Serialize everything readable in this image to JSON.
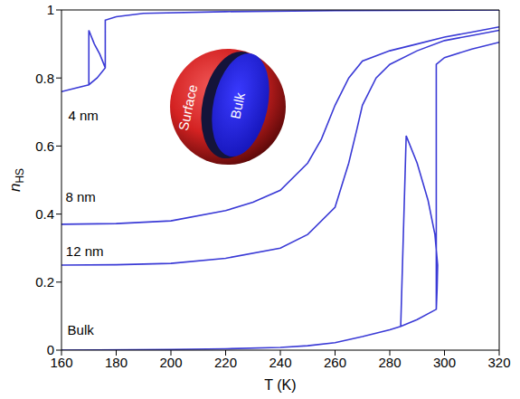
{
  "chart_data": {
    "type": "line",
    "xlabel": "T (K)",
    "ylabel": "nHS",
    "xlim": [
      160,
      320
    ],
    "xticks": [
      160,
      180,
      200,
      220,
      240,
      260,
      280,
      300,
      320
    ],
    "ylim": [
      0,
      1
    ],
    "yticks": [
      0,
      0.2,
      0.4,
      0.6,
      0.8,
      1
    ],
    "annotations": [
      "Surface",
      "Bulk"
    ],
    "series": [
      {
        "name": "4 nm",
        "color": "#3a3ad6",
        "x": [
          160,
          165,
          170,
          173,
          176,
          176,
          180,
          190,
          220,
          260,
          320,
          170,
          170,
          170,
          172,
          174,
          176
        ],
        "values": [
          0.76,
          0.77,
          0.78,
          0.8,
          0.83,
          0.97,
          0.98,
          0.99,
          0.995,
          0.998,
          1.0,
          null,
          0.78,
          0.94,
          0.9,
          0.87,
          0.83
        ]
      },
      {
        "name": "8 nm",
        "color": "#3a3ad6",
        "x": [
          160,
          180,
          200,
          220,
          230,
          240,
          250,
          255,
          260,
          265,
          270,
          280,
          290,
          300,
          310,
          320
        ],
        "values": [
          0.37,
          0.372,
          0.38,
          0.41,
          0.435,
          0.47,
          0.55,
          0.62,
          0.72,
          0.8,
          0.85,
          0.88,
          0.9,
          0.92,
          0.935,
          0.95
        ]
      },
      {
        "name": "12 nm",
        "color": "#3a3ad6",
        "x": [
          160,
          180,
          200,
          220,
          240,
          250,
          260,
          265,
          268,
          270,
          275,
          280,
          290,
          300,
          310,
          320
        ],
        "values": [
          0.25,
          0.251,
          0.255,
          0.27,
          0.3,
          0.34,
          0.42,
          0.55,
          0.65,
          0.72,
          0.8,
          0.84,
          0.88,
          0.91,
          0.925,
          0.94
        ]
      },
      {
        "name": "Bulk",
        "color": "#3a3ad6",
        "x": [
          160,
          200,
          220,
          240,
          250,
          260,
          270,
          280,
          284,
          290,
          297,
          297,
          300,
          310,
          320,
          284,
          284,
          286,
          290,
          294,
          296.5,
          297.5,
          297.3,
          297
        ],
        "values": [
          0.0,
          0.002,
          0.004,
          0.008,
          0.013,
          0.022,
          0.04,
          0.06,
          0.07,
          0.09,
          0.12,
          0.84,
          0.86,
          0.885,
          0.905,
          null,
          0.07,
          0.63,
          0.55,
          0.44,
          0.34,
          0.25,
          0.18,
          0.12
        ]
      }
    ]
  }
}
